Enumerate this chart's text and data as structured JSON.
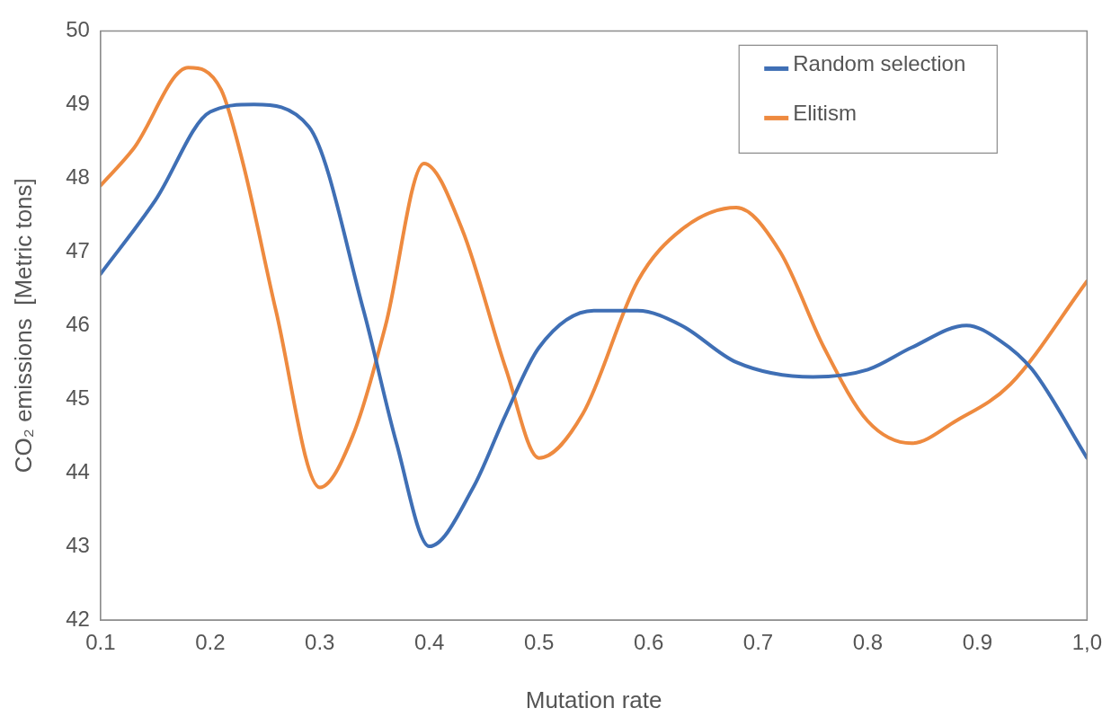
{
  "chart_data": {
    "type": "line",
    "xlabel": "Mutation rate",
    "ylabel": "CO₂ emissions  [Metric tons]",
    "xlim": [
      0.1,
      1.0
    ],
    "xticks": [
      0.1,
      0.2,
      0.3,
      0.4,
      0.5,
      0.6,
      0.7,
      0.8,
      0.9,
      {
        "value": 1.0,
        "label": "1,0"
      }
    ],
    "ylim": [
      42,
      50
    ],
    "yticks": [
      42,
      43,
      44,
      45,
      46,
      47,
      48,
      49,
      50
    ],
    "grid": false,
    "legend": "top right",
    "marker": "none",
    "line_style": "solid",
    "series": [
      {
        "name": "Random selection",
        "color": "#3f6fb5",
        "x": [
          0.1,
          0.15,
          0.2,
          0.24,
          0.29,
          0.34,
          0.37,
          0.4,
          0.44,
          0.47,
          0.5,
          0.55,
          0.59,
          0.63,
          0.68,
          0.75,
          0.8,
          0.84,
          0.89,
          0.92,
          0.95,
          1.0
        ],
        "values": [
          46.7,
          47.7,
          48.9,
          49.0,
          48.7,
          46.2,
          44.4,
          43.0,
          43.8,
          44.8,
          45.7,
          46.2,
          46.2,
          46.0,
          45.5,
          45.3,
          45.4,
          45.7,
          46.0,
          45.8,
          45.4,
          44.2
        ]
      },
      {
        "name": "Elitism",
        "color": "#ee8a3f",
        "x": [
          0.1,
          0.13,
          0.18,
          0.21,
          0.23,
          0.26,
          0.3,
          0.33,
          0.36,
          0.395,
          0.43,
          0.47,
          0.5,
          0.54,
          0.59,
          0.63,
          0.68,
          0.72,
          0.76,
          0.8,
          0.84,
          0.88,
          0.93,
          1.0
        ],
        "values": [
          47.9,
          48.4,
          49.5,
          49.2,
          48.2,
          46.2,
          43.8,
          44.5,
          46.0,
          48.2,
          47.3,
          45.4,
          44.2,
          44.8,
          46.6,
          47.3,
          47.6,
          47.0,
          45.7,
          44.7,
          44.4,
          44.7,
          45.2,
          46.6
        ]
      }
    ]
  }
}
